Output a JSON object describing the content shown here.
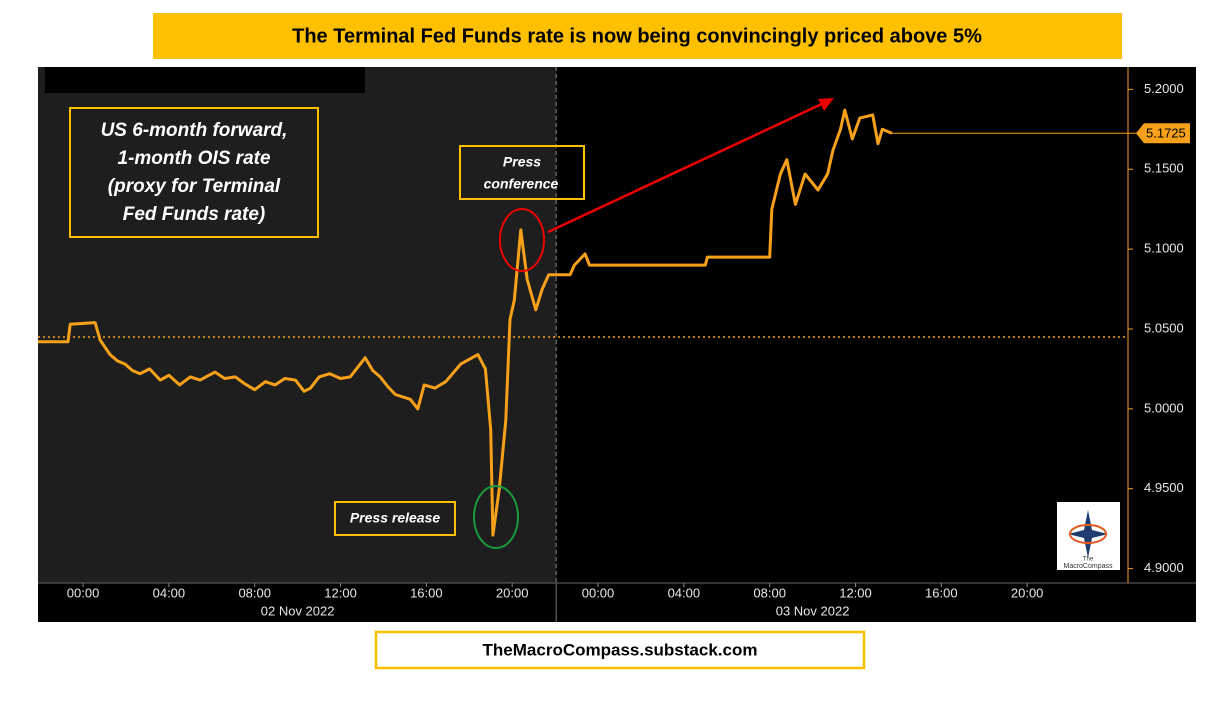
{
  "chart_data": {
    "type": "line",
    "title": "The Terminal Fed Funds rate is now being convincingly priced above 5%",
    "footer": "TheMacroCompass.substack.com",
    "annotations": {
      "series_note": [
        "US 6-month forward,",
        "1-month OIS rate",
        "(proxy for Terminal",
        "Fed Funds rate)"
      ],
      "press_conference": [
        "Press",
        "conference"
      ],
      "press_release": "Press release"
    },
    "logo": [
      "The",
      "MacroCompass"
    ],
    "dates": [
      "02 Nov 2022",
      "03 Nov 2022"
    ],
    "x": [
      -2.1,
      -0.7,
      -0.6,
      0.56,
      0.8,
      1.26,
      1.6,
      1.96,
      2.3,
      2.66,
      3.1,
      3.6,
      4.0,
      4.5,
      5.0,
      5.45,
      6.15,
      6.6,
      7.1,
      7.5,
      8.0,
      8.5,
      8.95,
      9.4,
      9.9,
      10.3,
      10.6,
      11.0,
      11.5,
      12.0,
      12.45,
      13.15,
      13.5,
      13.85,
      14.2,
      14.55,
      15.25,
      15.6,
      15.9,
      16.4,
      16.9,
      17.6,
      18.4,
      18.75,
      19.0,
      19.1,
      19.4,
      19.7,
      19.9,
      20.1,
      20.4,
      20.7,
      21.1,
      21.4,
      21.7,
      22.05,
      22.7,
      22.9,
      23.4,
      23.6,
      29.0,
      29.1,
      32.0,
      32.1,
      32.5,
      32.8,
      33.2,
      33.65,
      34.25,
      34.7,
      34.95,
      35.3,
      35.5,
      35.85,
      36.2,
      36.8,
      37.05,
      37.25,
      37.7
    ],
    "values": [
      5.042,
      5.042,
      5.053,
      5.054,
      5.043,
      5.034,
      5.03,
      5.028,
      5.024,
      5.022,
      5.025,
      5.018,
      5.021,
      5.015,
      5.02,
      5.018,
      5.023,
      5.019,
      5.02,
      5.016,
      5.012,
      5.017,
      5.015,
      5.019,
      5.018,
      5.011,
      5.013,
      5.02,
      5.022,
      5.019,
      5.02,
      5.032,
      5.024,
      5.02,
      5.014,
      5.009,
      5.006,
      5.0,
      5.015,
      5.013,
      5.017,
      5.028,
      5.034,
      5.025,
      4.987,
      4.921,
      4.95,
      4.993,
      5.056,
      5.068,
      5.112,
      5.081,
      5.062,
      5.075,
      5.084,
      5.084,
      5.084,
      5.09,
      5.097,
      5.09,
      5.09,
      5.095,
      5.095,
      5.125,
      5.147,
      5.156,
      5.128,
      5.147,
      5.137,
      5.147,
      5.162,
      5.175,
      5.187,
      5.169,
      5.182,
      5.184,
      5.166,
      5.175,
      5.1725
    ],
    "color": "#f7a11a",
    "xlim": [
      -2.1,
      48.7
    ],
    "ylim": [
      4.891,
      5.214
    ],
    "xticks": [
      {
        "value": 0,
        "label": "00:00"
      },
      {
        "value": 4,
        "label": "04:00"
      },
      {
        "value": 8,
        "label": "08:00"
      },
      {
        "value": 12,
        "label": "12:00"
      },
      {
        "value": 16,
        "label": "16:00"
      },
      {
        "value": 20,
        "label": "20:00"
      },
      {
        "value": 24,
        "label": "00:00"
      },
      {
        "value": 28,
        "label": "04:00"
      },
      {
        "value": 32,
        "label": "08:00"
      },
      {
        "value": 36,
        "label": "12:00"
      },
      {
        "value": 40,
        "label": "16:00"
      },
      {
        "value": 44,
        "label": "20:00"
      }
    ],
    "yticks": [
      {
        "value": 4.9,
        "label": "4.9000"
      },
      {
        "value": 4.95,
        "label": "4.9500"
      },
      {
        "value": 5.0,
        "label": "5.0000"
      },
      {
        "value": 5.05,
        "label": "5.0500"
      },
      {
        "value": 5.1,
        "label": "5.1000"
      },
      {
        "value": 5.15,
        "label": "5.1500"
      },
      {
        "value": 5.2,
        "label": "5.2000"
      }
    ],
    "reference_line": 5.045,
    "session_break": 22.05,
    "last_value": {
      "value": 5.1725,
      "label": "5.1725"
    }
  }
}
